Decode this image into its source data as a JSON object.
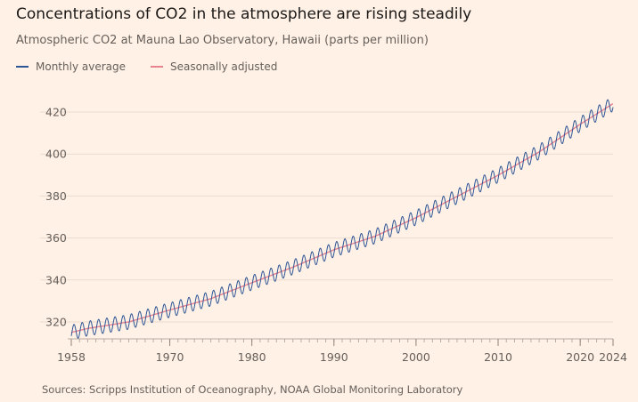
{
  "title": "Concentrations of CO2 in the atmosphere are rising steadily",
  "subtitle": "Atmospheric CO2 at Mauna Lao Observatory, Hawaii (parts per million)",
  "source": "Sources: Scripps Institution of Oceanography, NOAA Global Monitoring Laboratory",
  "colors": {
    "monthly": "#2e5596",
    "seasonal": "#e8838f",
    "grid": "#ecdccf",
    "axis": "#b8aca4"
  },
  "chart_data": {
    "type": "line",
    "grid": "horizontal",
    "legend_position": "top-left",
    "xlim": [
      1958,
      2024
    ],
    "ylim": [
      310,
      425
    ],
    "x_ticks": [
      1958,
      1970,
      1980,
      1990,
      2000,
      2010,
      2020,
      2024
    ],
    "y_ticks": [
      320,
      340,
      360,
      380,
      400,
      420
    ],
    "seasonal_amplitude_ppm": 3.5,
    "series": [
      {
        "name": "Monthly average",
        "key": "monthly",
        "style": "oscillating",
        "x": [
          1958,
          1960,
          1965,
          1970,
          1975,
          1980,
          1985,
          1990,
          1995,
          2000,
          2005,
          2010,
          2015,
          2020,
          2024
        ],
        "values": [
          315,
          316.9,
          320.0,
          325.7,
          331.1,
          338.7,
          346.1,
          354.4,
          360.8,
          369.7,
          379.8,
          389.9,
          401.0,
          414.2,
          424.0
        ]
      },
      {
        "name": "Seasonally adjusted",
        "key": "seasonal",
        "style": "smooth",
        "x": [
          1958,
          1960,
          1965,
          1970,
          1975,
          1980,
          1985,
          1990,
          1995,
          2000,
          2005,
          2010,
          2015,
          2020,
          2024
        ],
        "values": [
          315,
          316.9,
          320.0,
          325.7,
          331.1,
          338.7,
          346.1,
          354.4,
          360.8,
          369.7,
          379.8,
          389.9,
          401.0,
          414.2,
          424.0
        ]
      }
    ]
  }
}
